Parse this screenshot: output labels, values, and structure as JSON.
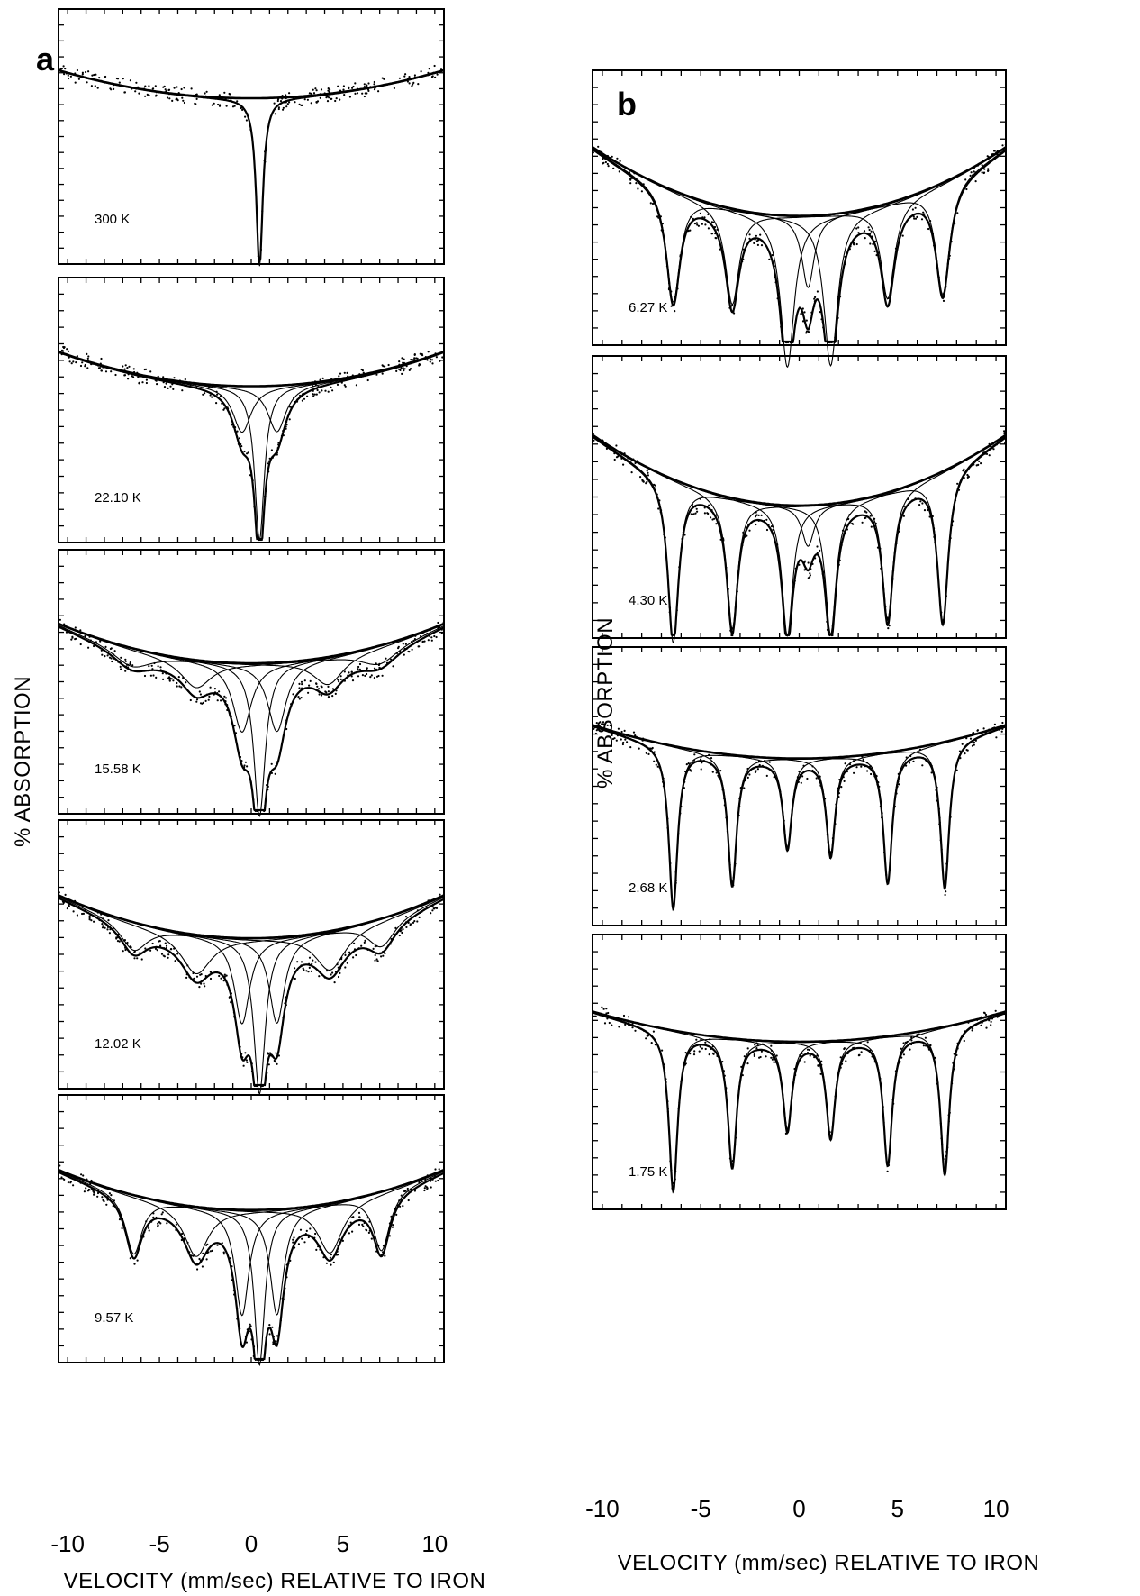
{
  "figure": {
    "panel_labels": [
      "a",
      "b"
    ],
    "ylabel": "% ABSORPTION",
    "xlabel": "VELOCITY (mm/sec)  RELATIVE TO IRON"
  },
  "chart_data": [
    {
      "panel": "a",
      "type": "line",
      "xlabel": "VELOCITY (mm/sec)  RELATIVE TO IRON",
      "ylabel": "% ABSORPTION",
      "xlim": [
        -10.5,
        10.5
      ],
      "xticks": [
        -10,
        -5,
        0,
        5,
        10
      ],
      "tick_labels": [
        "-10",
        "-5",
        "0",
        "5",
        "10"
      ],
      "grid": false,
      "spectra": [
        {
          "temperature": "300 K",
          "baseline_curvature": 0.11,
          "peaks": [
            {
              "pos": 0.45,
              "depth": 1.0,
              "width": 0.22
            }
          ]
        },
        {
          "temperature": "22.10 K",
          "baseline_curvature": 0.13,
          "peaks": [
            {
              "pos": 0.45,
              "depth": 1.0,
              "width": 0.32
            },
            {
              "pos": -0.5,
              "depth": 0.3,
              "width": 0.6
            },
            {
              "pos": 1.4,
              "depth": 0.3,
              "width": 0.6
            }
          ]
        },
        {
          "temperature": "15.58 K",
          "baseline_curvature": 0.15,
          "peaks": [
            {
              "pos": 0.45,
              "depth": 1.0,
              "width": 0.38
            },
            {
              "pos": -0.5,
              "depth": 0.45,
              "width": 0.6
            },
            {
              "pos": 1.4,
              "depth": 0.45,
              "width": 0.6
            },
            {
              "pos": -3.0,
              "depth": 0.18,
              "width": 1.0
            },
            {
              "pos": 4.2,
              "depth": 0.18,
              "width": 1.0
            },
            {
              "pos": -6.5,
              "depth": 0.12,
              "width": 1.3
            },
            {
              "pos": 7.0,
              "depth": 0.12,
              "width": 1.3
            }
          ]
        },
        {
          "temperature": "12.02 K",
          "baseline_curvature": 0.16,
          "peaks": [
            {
              "pos": 0.45,
              "depth": 1.0,
              "width": 0.38
            },
            {
              "pos": -0.5,
              "depth": 0.55,
              "width": 0.5
            },
            {
              "pos": 1.4,
              "depth": 0.55,
              "width": 0.5
            },
            {
              "pos": -3.0,
              "depth": 0.25,
              "width": 1.0
            },
            {
              "pos": 4.3,
              "depth": 0.25,
              "width": 1.0
            },
            {
              "pos": -6.4,
              "depth": 0.18,
              "width": 0.9
            },
            {
              "pos": 7.1,
              "depth": 0.18,
              "width": 0.9
            }
          ]
        },
        {
          "temperature": "9.57 K",
          "baseline_curvature": 0.15,
          "peaks": [
            {
              "pos": 0.45,
              "depth": 1.0,
              "width": 0.35
            },
            {
              "pos": -0.5,
              "depth": 0.68,
              "width": 0.45
            },
            {
              "pos": 1.4,
              "depth": 0.68,
              "width": 0.45
            },
            {
              "pos": -3.0,
              "depth": 0.32,
              "width": 0.8
            },
            {
              "pos": 4.3,
              "depth": 0.32,
              "width": 0.8
            },
            {
              "pos": -6.4,
              "depth": 0.38,
              "width": 0.55
            },
            {
              "pos": 7.1,
              "depth": 0.38,
              "width": 0.55
            }
          ]
        }
      ]
    },
    {
      "panel": "b",
      "type": "line",
      "xlabel": "VELOCITY (mm/sec)  RELATIVE TO IRON",
      "ylabel": "% ABSORPTION",
      "xlim": [
        -10.5,
        10.5
      ],
      "xticks": [
        -10,
        -5,
        0,
        5,
        10
      ],
      "tick_labels": [
        "-10",
        "-5",
        "0",
        "5",
        "10"
      ],
      "grid": false,
      "spectra": [
        {
          "temperature": "6.27 K",
          "baseline_curvature": 0.25,
          "peaks": [
            {
              "pos": -6.4,
              "depth": 0.7,
              "width": 0.42
            },
            {
              "pos": -3.4,
              "depth": 0.6,
              "width": 0.42
            },
            {
              "pos": -0.6,
              "depth": 0.95,
              "width": 0.42
            },
            {
              "pos": 1.6,
              "depth": 0.95,
              "width": 0.42
            },
            {
              "pos": 4.5,
              "depth": 0.6,
              "width": 0.42
            },
            {
              "pos": 7.3,
              "depth": 0.7,
              "width": 0.42
            },
            {
              "pos": 0.45,
              "depth": 0.45,
              "width": 0.38
            }
          ]
        },
        {
          "temperature": "4.30 K",
          "baseline_curvature": 0.25,
          "peaks": [
            {
              "pos": -6.4,
              "depth": 1.0,
              "width": 0.33
            },
            {
              "pos": -3.4,
              "depth": 0.8,
              "width": 0.33
            },
            {
              "pos": -0.6,
              "depth": 0.8,
              "width": 0.33
            },
            {
              "pos": 1.6,
              "depth": 0.8,
              "width": 0.33
            },
            {
              "pos": 4.5,
              "depth": 0.78,
              "width": 0.33
            },
            {
              "pos": 7.3,
              "depth": 0.92,
              "width": 0.33
            },
            {
              "pos": 0.45,
              "depth": 0.25,
              "width": 0.38
            }
          ]
        },
        {
          "temperature": "2.68 K",
          "baseline_curvature": 0.12,
          "peaks": [
            {
              "pos": -6.4,
              "depth": 1.0,
              "width": 0.27
            },
            {
              "pos": -3.4,
              "depth": 0.8,
              "width": 0.27
            },
            {
              "pos": -0.6,
              "depth": 0.55,
              "width": 0.27
            },
            {
              "pos": 1.6,
              "depth": 0.6,
              "width": 0.27
            },
            {
              "pos": 4.5,
              "depth": 0.8,
              "width": 0.27
            },
            {
              "pos": 7.4,
              "depth": 0.9,
              "width": 0.27
            }
          ]
        },
        {
          "temperature": "1.75 K",
          "baseline_curvature": 0.11,
          "peaks": [
            {
              "pos": -6.4,
              "depth": 1.0,
              "width": 0.27
            },
            {
              "pos": -3.4,
              "depth": 0.8,
              "width": 0.27
            },
            {
              "pos": -0.6,
              "depth": 0.55,
              "width": 0.27
            },
            {
              "pos": 1.6,
              "depth": 0.6,
              "width": 0.27
            },
            {
              "pos": 4.5,
              "depth": 0.8,
              "width": 0.27
            },
            {
              "pos": 7.4,
              "depth": 0.92,
              "width": 0.27
            }
          ]
        }
      ]
    }
  ]
}
